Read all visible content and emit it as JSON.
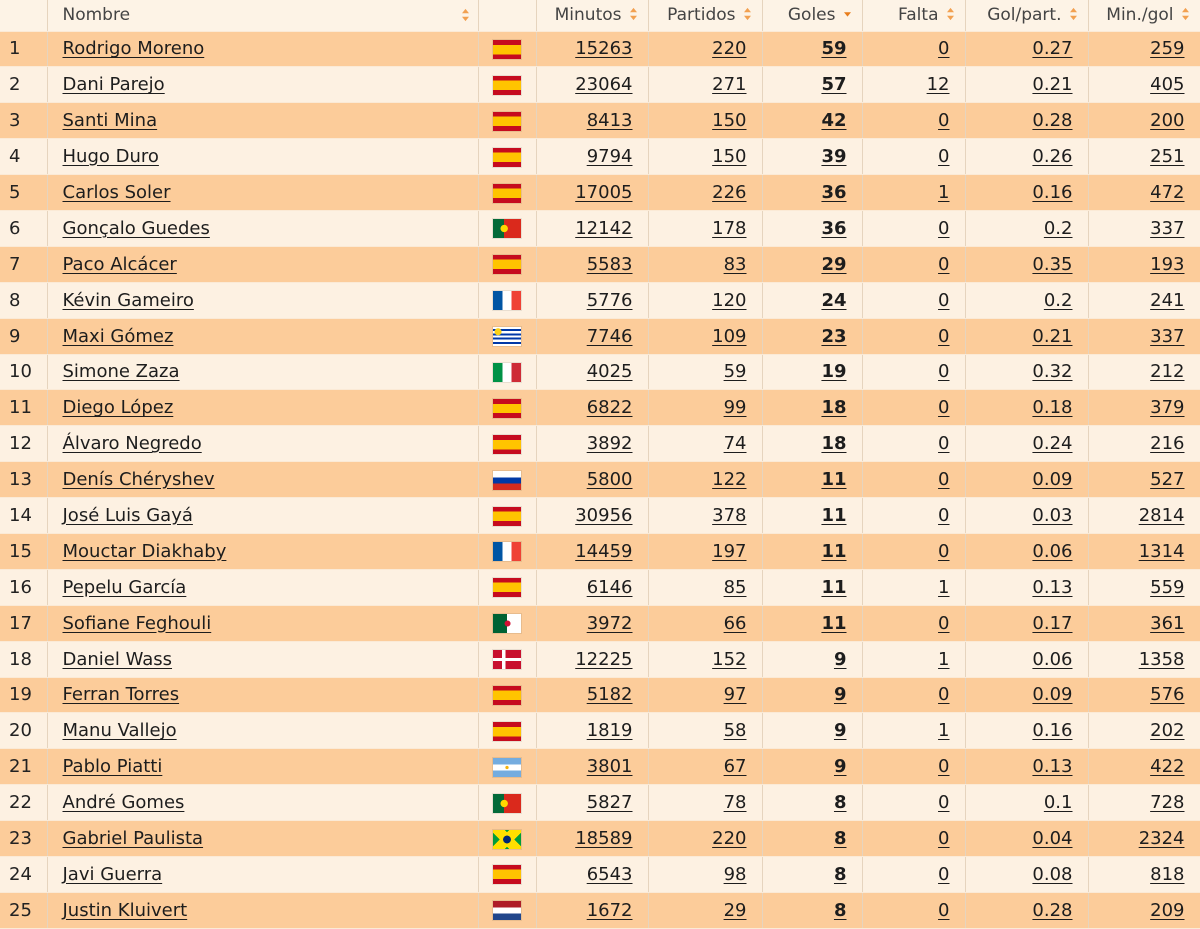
{
  "table": {
    "columns": {
      "rank": "",
      "name": "Nombre",
      "flag": "",
      "minutes": "Minutos",
      "matches": "Partidos",
      "goals": "Goles",
      "fouls": "Falta",
      "goals_per_match": "Gol/part.",
      "min_per_goal": "Min./gol"
    },
    "sort": {
      "column": "goals",
      "direction": "desc"
    },
    "colors": {
      "odd_row": "#fccc9a",
      "even_row": "#fdf1e2",
      "sort_arrow_inactive": "#f2a050",
      "sort_arrow_active": "#e87d1c"
    },
    "rows": [
      {
        "rank": "1",
        "name": "Rodrigo Moreno",
        "country": "spain",
        "minutes": "15263",
        "matches": "220",
        "goals": "59",
        "fouls": "0",
        "gpm": "0.27",
        "mpg": "259"
      },
      {
        "rank": "2",
        "name": "Dani Parejo",
        "country": "spain",
        "minutes": "23064",
        "matches": "271",
        "goals": "57",
        "fouls": "12",
        "gpm": "0.21",
        "mpg": "405"
      },
      {
        "rank": "3",
        "name": "Santi Mina",
        "country": "spain",
        "minutes": "8413",
        "matches": "150",
        "goals": "42",
        "fouls": "0",
        "gpm": "0.28",
        "mpg": "200"
      },
      {
        "rank": "4",
        "name": "Hugo Duro",
        "country": "spain",
        "minutes": "9794",
        "matches": "150",
        "goals": "39",
        "fouls": "0",
        "gpm": "0.26",
        "mpg": "251"
      },
      {
        "rank": "5",
        "name": "Carlos Soler",
        "country": "spain",
        "minutes": "17005",
        "matches": "226",
        "goals": "36",
        "fouls": "1",
        "gpm": "0.16",
        "mpg": "472"
      },
      {
        "rank": "6",
        "name": "Gonçalo Guedes",
        "country": "portugal",
        "minutes": "12142",
        "matches": "178",
        "goals": "36",
        "fouls": "0",
        "gpm": "0.2",
        "mpg": "337"
      },
      {
        "rank": "7",
        "name": "Paco Alcácer",
        "country": "spain",
        "minutes": "5583",
        "matches": "83",
        "goals": "29",
        "fouls": "0",
        "gpm": "0.35",
        "mpg": "193"
      },
      {
        "rank": "8",
        "name": "Kévin Gameiro",
        "country": "france",
        "minutes": "5776",
        "matches": "120",
        "goals": "24",
        "fouls": "0",
        "gpm": "0.2",
        "mpg": "241"
      },
      {
        "rank": "9",
        "name": "Maxi Gómez",
        "country": "uruguay",
        "minutes": "7746",
        "matches": "109",
        "goals": "23",
        "fouls": "0",
        "gpm": "0.21",
        "mpg": "337"
      },
      {
        "rank": "10",
        "name": "Simone Zaza",
        "country": "italy",
        "minutes": "4025",
        "matches": "59",
        "goals": "19",
        "fouls": "0",
        "gpm": "0.32",
        "mpg": "212"
      },
      {
        "rank": "11",
        "name": "Diego López",
        "country": "spain",
        "minutes": "6822",
        "matches": "99",
        "goals": "18",
        "fouls": "0",
        "gpm": "0.18",
        "mpg": "379"
      },
      {
        "rank": "12",
        "name": "Álvaro Negredo",
        "country": "spain",
        "minutes": "3892",
        "matches": "74",
        "goals": "18",
        "fouls": "0",
        "gpm": "0.24",
        "mpg": "216"
      },
      {
        "rank": "13",
        "name": "Denís Chéryshev",
        "country": "russia",
        "minutes": "5800",
        "matches": "122",
        "goals": "11",
        "fouls": "0",
        "gpm": "0.09",
        "mpg": "527"
      },
      {
        "rank": "14",
        "name": "José Luis Gayá",
        "country": "spain",
        "minutes": "30956",
        "matches": "378",
        "goals": "11",
        "fouls": "0",
        "gpm": "0.03",
        "mpg": "2814"
      },
      {
        "rank": "15",
        "name": "Mouctar Diakhaby",
        "country": "france",
        "minutes": "14459",
        "matches": "197",
        "goals": "11",
        "fouls": "0",
        "gpm": "0.06",
        "mpg": "1314"
      },
      {
        "rank": "16",
        "name": "Pepelu García",
        "country": "spain",
        "minutes": "6146",
        "matches": "85",
        "goals": "11",
        "fouls": "1",
        "gpm": "0.13",
        "mpg": "559"
      },
      {
        "rank": "17",
        "name": "Sofiane Feghouli",
        "country": "algeria",
        "minutes": "3972",
        "matches": "66",
        "goals": "11",
        "fouls": "0",
        "gpm": "0.17",
        "mpg": "361"
      },
      {
        "rank": "18",
        "name": "Daniel Wass",
        "country": "denmark",
        "minutes": "12225",
        "matches": "152",
        "goals": "9",
        "fouls": "1",
        "gpm": "0.06",
        "mpg": "1358"
      },
      {
        "rank": "19",
        "name": "Ferran Torres",
        "country": "spain",
        "minutes": "5182",
        "matches": "97",
        "goals": "9",
        "fouls": "0",
        "gpm": "0.09",
        "mpg": "576"
      },
      {
        "rank": "20",
        "name": "Manu Vallejo",
        "country": "spain",
        "minutes": "1819",
        "matches": "58",
        "goals": "9",
        "fouls": "1",
        "gpm": "0.16",
        "mpg": "202"
      },
      {
        "rank": "21",
        "name": "Pablo Piatti",
        "country": "argentina",
        "minutes": "3801",
        "matches": "67",
        "goals": "9",
        "fouls": "0",
        "gpm": "0.13",
        "mpg": "422"
      },
      {
        "rank": "22",
        "name": "André Gomes",
        "country": "portugal",
        "minutes": "5827",
        "matches": "78",
        "goals": "8",
        "fouls": "0",
        "gpm": "0.1",
        "mpg": "728"
      },
      {
        "rank": "23",
        "name": "Gabriel Paulista",
        "country": "brazil",
        "minutes": "18589",
        "matches": "220",
        "goals": "8",
        "fouls": "0",
        "gpm": "0.04",
        "mpg": "2324"
      },
      {
        "rank": "24",
        "name": "Javi Guerra",
        "country": "spain",
        "minutes": "6543",
        "matches": "98",
        "goals": "8",
        "fouls": "0",
        "gpm": "0.08",
        "mpg": "818"
      },
      {
        "rank": "25",
        "name": "Justin Kluivert",
        "country": "netherlands",
        "minutes": "1672",
        "matches": "29",
        "goals": "8",
        "fouls": "0",
        "gpm": "0.28",
        "mpg": "209"
      }
    ]
  }
}
